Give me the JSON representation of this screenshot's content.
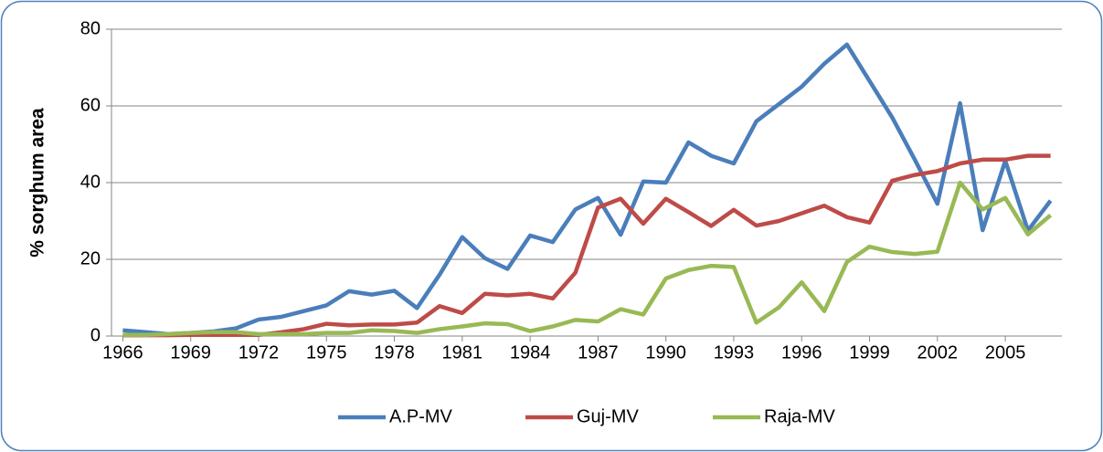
{
  "chart_data": {
    "type": "line",
    "y_label": "% sorghum area",
    "x": [
      1966,
      1967,
      1968,
      1969,
      1970,
      1971,
      1972,
      1973,
      1974,
      1975,
      1976,
      1977,
      1978,
      1979,
      1980,
      1981,
      1982,
      1983,
      1984,
      1985,
      1986,
      1987,
      1988,
      1989,
      1990,
      1991,
      1992,
      1993,
      1994,
      1995,
      1996,
      1997,
      1998,
      1999,
      2000,
      2001,
      2002,
      2003,
      2004,
      2005,
      2006,
      2007
    ],
    "series": [
      {
        "name": "A.P-MV",
        "color": "#4a7ebb",
        "values": [
          1.5,
          1,
          0.5,
          0.8,
          1.2,
          2,
          4.3,
          5,
          6.5,
          8,
          11.7,
          10.8,
          11.8,
          7.3,
          16,
          25.8,
          20.3,
          17.5,
          26.2,
          24.5,
          33,
          36,
          26.4,
          40.3,
          40,
          50.5,
          47,
          45,
          56,
          60.5,
          65,
          71,
          76,
          66.5,
          57,
          46,
          34.5,
          60.7,
          27.6,
          45.7,
          27.5,
          35.3
        ]
      },
      {
        "name": "Guj-MV",
        "color": "#be4b48",
        "values": [
          0.2,
          0.2,
          0.2,
          0.3,
          0.3,
          0.3,
          0.3,
          1,
          1.8,
          3.2,
          2.8,
          3,
          3,
          3.5,
          7.8,
          6,
          11,
          10.6,
          11,
          9.8,
          16.5,
          33.5,
          35.8,
          29.3,
          35.8,
          32.3,
          28.7,
          32.9,
          28.8,
          30,
          32,
          34,
          31,
          29.6,
          40.5,
          42,
          43,
          45,
          46,
          46,
          47,
          47
        ]
      },
      {
        "name": "Raja-MV",
        "color": "#98b954",
        "values": [
          0.3,
          0.3,
          0.5,
          0.8,
          1,
          1,
          0.5,
          0.5,
          0.5,
          0.8,
          0.8,
          1.5,
          1.3,
          0.8,
          1.8,
          2.5,
          3.3,
          3.1,
          1.3,
          2.5,
          4.2,
          3.8,
          7,
          5.6,
          15,
          17.2,
          18.3,
          18,
          3.5,
          7.5,
          14,
          6.5,
          19.3,
          23.3,
          21.9,
          21.4,
          22,
          40,
          33,
          36,
          26.5,
          31.5
        ]
      }
    ],
    "xlim": [
      1965.5,
      2007.5
    ],
    "xticks": [
      1966,
      1969,
      1972,
      1975,
      1978,
      1981,
      1984,
      1987,
      1990,
      1993,
      1996,
      1999,
      2002,
      2005
    ],
    "ylim": [
      0,
      80
    ],
    "yticks": [
      0,
      20,
      40,
      60,
      80
    ],
    "grid": true,
    "legend": "bottom"
  }
}
